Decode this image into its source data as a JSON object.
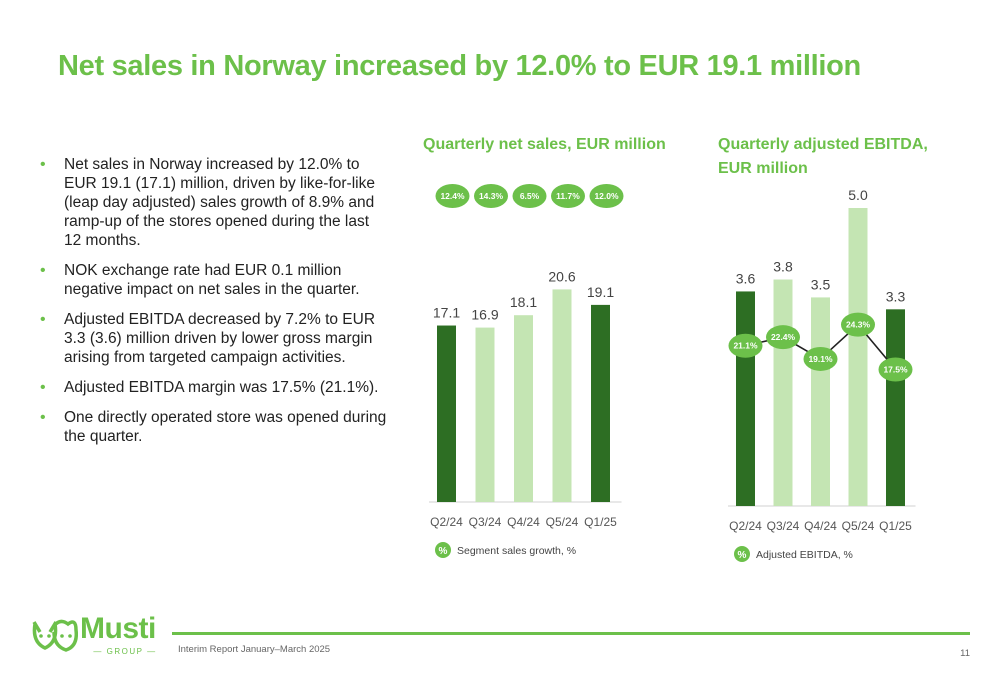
{
  "page": {
    "title": "Net sales in Norway increased by 12.0% to EUR 19.1 million",
    "footer_text": "Interim Report January–March 2025",
    "page_number": "11"
  },
  "logo": {
    "word": "Musti",
    "sub": "GROUP"
  },
  "bullets": [
    "Net sales in Norway increased by 12.0% to EUR 19.1 (17.1) million, driven by like-for-like (leap day adjusted) sales growth of 8.9% and ramp-up of the stores opened during the last 12 months.",
    "NOK exchange rate had EUR 0.1 million negative impact on net sales in the quarter.",
    "Adjusted EBITDA decreased by 7.2% to EUR 3.3 (3.6) million driven by lower gross margin arising from targeted campaign activities.",
    "Adjusted EBITDA margin was 17.5% (21.1%).",
    "One directly operated store was opened during the quarter."
  ],
  "colors": {
    "accent": "#6cc04a",
    "dark_bar": "#2d6e23",
    "light_bar": "#c4e5b3"
  },
  "chart_data": [
    {
      "type": "bar",
      "title": "Quarterly net sales, EUR million",
      "categories": [
        "Q2/24",
        "Q3/24",
        "Q4/24",
        "Q5/24",
        "Q1/25"
      ],
      "values": [
        17.1,
        16.9,
        18.1,
        20.6,
        19.1
      ],
      "value_labels": [
        "17.1",
        "16.9",
        "18.1",
        "20.6",
        "19.1"
      ],
      "highlight": [
        true,
        false,
        false,
        false,
        true
      ],
      "growth_badges": [
        "12.4%",
        "14.3%",
        "6.5%",
        "11.7%",
        "12.0%"
      ],
      "legend_symbol": "%",
      "legend_label": "Segment sales growth, %"
    },
    {
      "type": "bar",
      "title": "Quarterly adjusted EBITDA, EUR million",
      "categories": [
        "Q2/24",
        "Q3/24",
        "Q4/24",
        "Q5/24",
        "Q1/25"
      ],
      "values": [
        3.6,
        3.8,
        3.5,
        5.0,
        3.3
      ],
      "value_labels": [
        "3.6",
        "3.8",
        "3.5",
        "5.0",
        "3.3"
      ],
      "highlight": [
        true,
        false,
        false,
        false,
        true
      ],
      "line_series": {
        "values": [
          21.1,
          22.4,
          19.1,
          24.3,
          17.5
        ],
        "labels": [
          "21.1%",
          "22.4%",
          "19.1%",
          "24.3%",
          "17.5%"
        ]
      },
      "legend_symbol": "%",
      "legend_label": "Adjusted EBITDA, %"
    }
  ]
}
